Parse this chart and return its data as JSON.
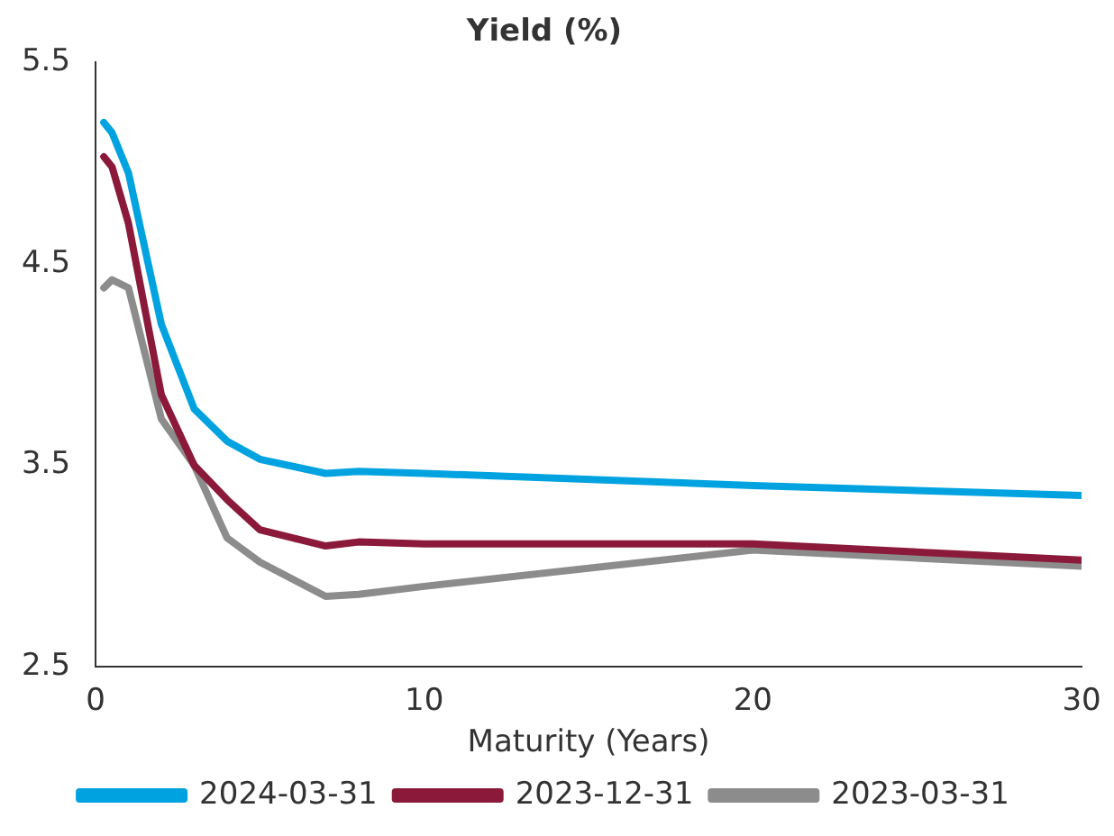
{
  "chart_data": {
    "type": "line",
    "title": "Yield (%)",
    "xlabel": "Maturity (Years)",
    "xlim": [
      0,
      30
    ],
    "xticks": [
      0,
      10,
      20,
      30
    ],
    "ylim": [
      2.5,
      5.5
    ],
    "yticks": [
      2.5,
      3.5,
      4.5,
      5.5
    ],
    "grid": false,
    "legend": "bottom",
    "marker": "none",
    "line_style": "solid",
    "x": [
      0.25,
      0.5,
      1,
      2,
      3,
      4,
      5,
      7,
      8,
      10,
      20,
      30
    ],
    "series": [
      {
        "name": "2024-03-31",
        "color": "#00a3e0",
        "values": [
          5.2,
          5.15,
          4.95,
          4.2,
          3.78,
          3.62,
          3.53,
          3.46,
          3.47,
          3.46,
          3.4,
          3.35
        ]
      },
      {
        "name": "2023-12-31",
        "color": "#8b1a3a",
        "values": [
          5.03,
          4.98,
          4.7,
          3.85,
          3.5,
          3.33,
          3.18,
          3.1,
          3.12,
          3.11,
          3.11,
          3.03
        ]
      },
      {
        "name": "2023-03-31",
        "color": "#8c8c8c",
        "values": [
          4.38,
          4.42,
          4.38,
          3.73,
          3.5,
          3.14,
          3.02,
          2.85,
          2.86,
          2.9,
          3.08,
          3.0
        ]
      }
    ]
  }
}
